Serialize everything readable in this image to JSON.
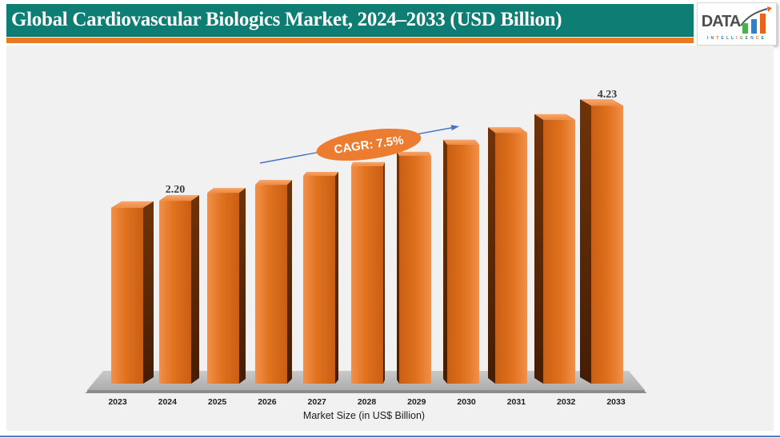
{
  "header": {
    "title": "Global Cardiovascular Biologics Market, 2024–2033 (USD Billion)",
    "logo": {
      "brand": "DATA",
      "tagline": "INTELLIGENCE"
    }
  },
  "chart_data": {
    "type": "bar",
    "title": "Global Cardiovascular Biologics Market, 2024–2033 (USD Billion)",
    "xlabel": "Market Size (in US$ Billion)",
    "ylabel": "",
    "categories": [
      "2023",
      "2024",
      "2025",
      "2026",
      "2027",
      "2028",
      "2029",
      "2030",
      "2031",
      "2032",
      "2033"
    ],
    "values": [
      2.05,
      2.2,
      2.37,
      2.54,
      2.73,
      2.94,
      3.16,
      3.4,
      3.65,
      3.93,
      4.23
    ],
    "labeled_points": [
      {
        "year": "2024",
        "label": "2.20"
      },
      {
        "year": "2033",
        "label": "4.23"
      }
    ],
    "annotation": "CAGR: 7.5%",
    "legend": "none",
    "grid": "off",
    "style": "3d-perspective-columns"
  },
  "colors": {
    "header_teal": "#0e7d74",
    "header_orange": "#e87a24",
    "bar_front": "#e0721f",
    "bar_front_light": "#f19049",
    "bar_front_dark": "#c95e13",
    "bar_top": "#f59a5c",
    "bar_side_dark": "#451d04",
    "bar_side": "#703308",
    "floor_gray": "#b8b8b8",
    "arrow_blue": "#4472c4",
    "annotation_fill": "#ec7c2f",
    "label_text": "#3a3a3a",
    "bottom_rule_blue": "#4a7ebf"
  }
}
